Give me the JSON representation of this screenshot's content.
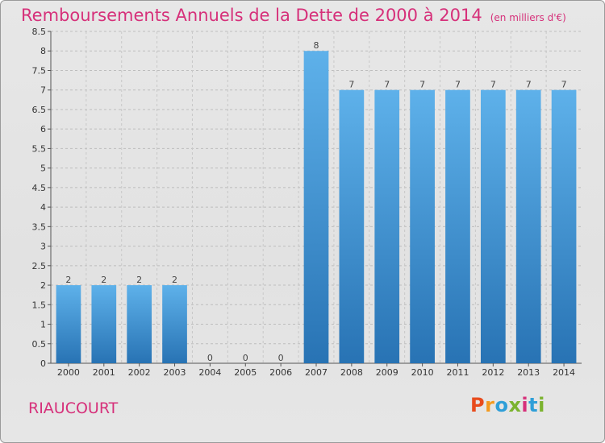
{
  "header": {
    "title": "Remboursements Annuels de la Dette de 2000 à 2014",
    "unit": "(en milliers d'€)"
  },
  "commune": "RIAUCOURT",
  "brand": {
    "letters": [
      "P",
      "r",
      "o",
      "x",
      "i",
      "t",
      "i"
    ],
    "colors": [
      "#e84b1c",
      "#f39a1e",
      "#2f9fd8",
      "#7bb32e",
      "#d6307a",
      "#2f9fd8",
      "#7bb32e"
    ]
  },
  "colors": {
    "bar_top": "#5eb1ea",
    "bar_bottom": "#2873b4",
    "title": "#d6307a"
  },
  "chart_data": {
    "type": "bar",
    "categories": [
      "2000",
      "2001",
      "2002",
      "2003",
      "2004",
      "2005",
      "2006",
      "2007",
      "2008",
      "2009",
      "2010",
      "2011",
      "2012",
      "2013",
      "2014"
    ],
    "values": [
      2,
      2,
      2,
      2,
      0,
      0,
      0,
      8,
      7,
      7,
      7,
      7,
      7,
      7,
      7
    ],
    "value_labels": [
      "2",
      "2",
      "2",
      "2",
      "0",
      "0",
      "0",
      "8",
      "7",
      "7",
      "7",
      "7",
      "7",
      "7",
      "7"
    ],
    "ylim": [
      0,
      8.5
    ],
    "y_ticks": [
      0,
      0.5,
      1,
      1.5,
      2,
      2.5,
      3,
      3.5,
      4,
      4.5,
      5,
      5.5,
      6,
      6.5,
      7,
      7.5,
      8,
      8.5
    ],
    "y_tick_labels": [
      "0",
      "0.5",
      "1",
      "1.5",
      "2",
      "2.5",
      "3",
      "3.5",
      "4",
      "4.5",
      "5",
      "5.5",
      "6",
      "6.5",
      "7",
      "7.5",
      "8",
      "8.5"
    ],
    "grid": true
  }
}
